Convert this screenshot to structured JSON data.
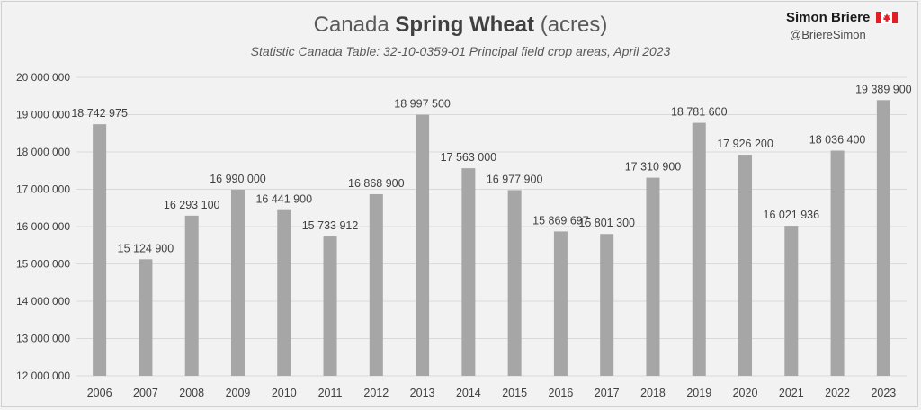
{
  "header": {
    "title_plain": "Canada",
    "title_bold": "Spring Wheat",
    "title_unit": "(acres)",
    "subtitle": "Statistic Canada Table: 32-10-0359-01 Principal field crop areas, April 2023"
  },
  "brand": {
    "name": "Simon Briere",
    "handle": "@BriereSimon",
    "flag_icon": "canada-flag-icon"
  },
  "chart_data": {
    "type": "bar",
    "title": "Canada Spring Wheat (acres)",
    "subtitle": "Statistic Canada Table: 32-10-0359-01 Principal field crop areas, April 2023",
    "categories": [
      "2006",
      "2007",
      "2008",
      "2009",
      "2010",
      "2011",
      "2012",
      "2013",
      "2014",
      "2015",
      "2016",
      "2017",
      "2018",
      "2019",
      "2020",
      "2021",
      "2022",
      "2023"
    ],
    "values": [
      18742975,
      15124900,
      16293100,
      16990000,
      16441900,
      15733912,
      16868900,
      18997500,
      17563000,
      16977900,
      15869697,
      15801300,
      17310900,
      18781600,
      17926200,
      16021936,
      18036400,
      19389900
    ],
    "data_labels": [
      "18 742 975",
      "15 124 900",
      "16 293 100",
      "16 990 000",
      "16 441 900",
      "15 733 912",
      "16 868 900",
      "18 997 500",
      "17 563 000",
      "16 977 900",
      "15 869 697",
      "15 801 300",
      "17 310 900",
      "18 781 600",
      "17 926 200",
      "16 021 936",
      "18 036 400",
      "19 389 900"
    ],
    "y_ticks": [
      12000000,
      13000000,
      14000000,
      15000000,
      16000000,
      17000000,
      18000000,
      19000000,
      20000000
    ],
    "y_tick_labels": [
      "12 000 000",
      "13 000 000",
      "14 000 000",
      "15 000 000",
      "16 000 000",
      "17 000 000",
      "18 000 000",
      "19 000 000",
      "20 000 000"
    ],
    "ylim": [
      12000000,
      20000000
    ],
    "grid": true,
    "legend": "none",
    "colors": {
      "bar": "#a6a6a6",
      "grid": "#d9d9d9",
      "text": "#404040",
      "background": "#f2f2f2"
    }
  }
}
